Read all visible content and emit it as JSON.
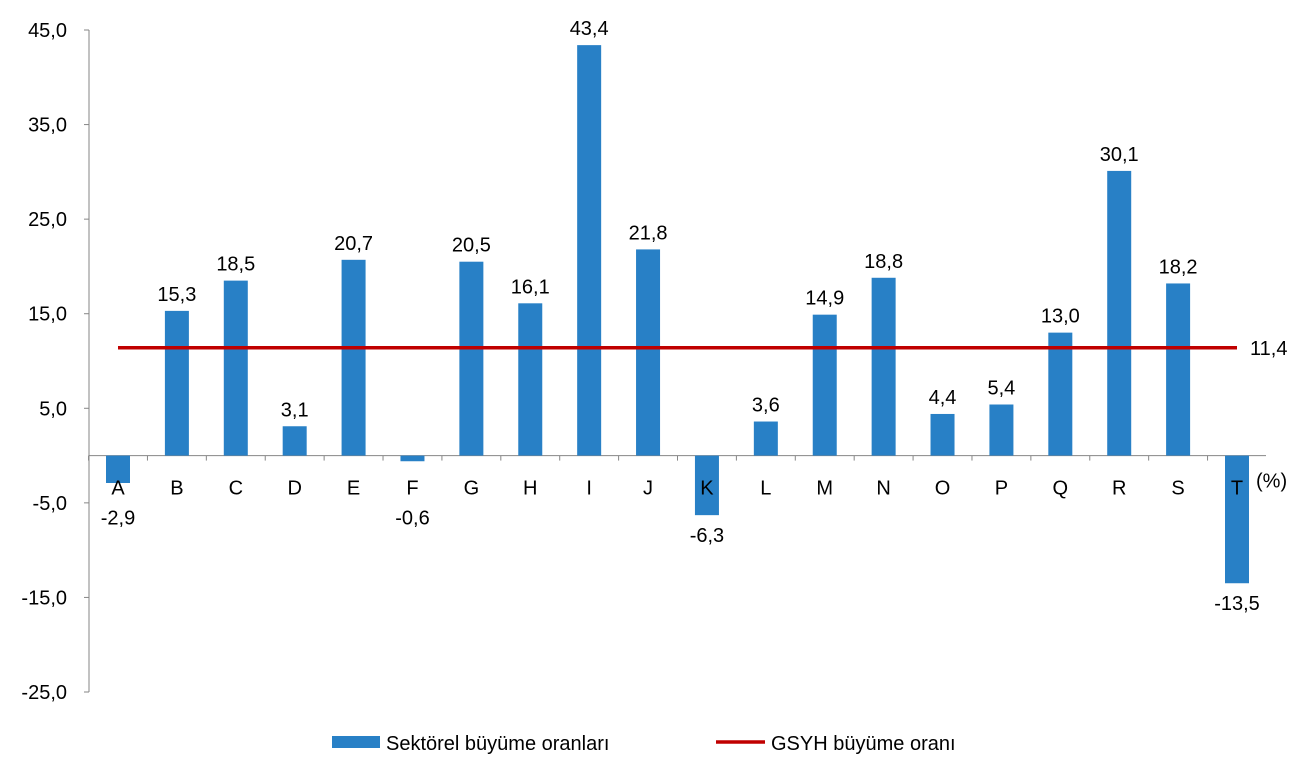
{
  "chart_data": {
    "type": "bar",
    "title": "",
    "xlabel": "",
    "ylabel": "",
    "unit_label": "(%)",
    "categories": [
      "A",
      "B",
      "C",
      "D",
      "E",
      "F",
      "G",
      "H",
      "I",
      "J",
      "K",
      "L",
      "M",
      "N",
      "O",
      "P",
      "Q",
      "R",
      "S",
      "T"
    ],
    "series": [
      {
        "name": "Sektörel büyüme oranları",
        "kind": "bar",
        "color": "#2880C6",
        "values": [
          -2.9,
          15.3,
          18.5,
          3.1,
          20.7,
          -0.6,
          20.5,
          16.1,
          43.4,
          21.8,
          -6.3,
          3.6,
          14.9,
          18.8,
          4.4,
          5.4,
          13.0,
          30.1,
          18.2,
          -13.5
        ],
        "labels": [
          "-2,9",
          "15,3",
          "18,5",
          "3,1",
          "20,7",
          "-0,6",
          "20,5",
          "16,1",
          "43,4",
          "21,8",
          "-6,3",
          "3,6",
          "14,9",
          "18,8",
          "4,4",
          "5,4",
          "13,0",
          "30,1",
          "18,2",
          "-13,5"
        ]
      },
      {
        "name": "GSYH büyüme oranı",
        "kind": "line",
        "color": "#C00000",
        "value": 11.4,
        "label": "11,4"
      }
    ],
    "ylim": [
      -25,
      45
    ],
    "yticks": [
      45,
      35,
      25,
      15,
      5,
      -5,
      -15,
      -25
    ],
    "ytick_labels": [
      "45,0",
      "35,0",
      "25,0",
      "15,0",
      "5,0",
      "-5,0",
      "-15,0",
      "-25,0"
    ],
    "grid": false,
    "legend_position": "bottom"
  }
}
